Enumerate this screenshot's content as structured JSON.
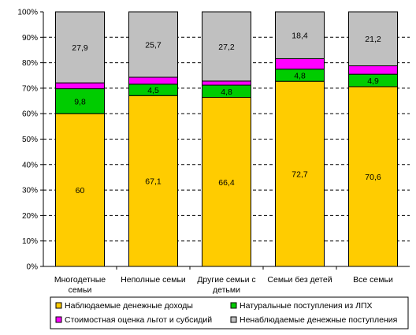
{
  "chart_data": {
    "type": "bar",
    "stacked": "percent",
    "title": "",
    "xlabel": "",
    "ylabel": "",
    "ylim": [
      0,
      100
    ],
    "yticks": [
      "0%",
      "10%",
      "20%",
      "30%",
      "40%",
      "50%",
      "60%",
      "70%",
      "80%",
      "90%",
      "100%"
    ],
    "grid": "horizontal-dashed",
    "legend_position": "bottom",
    "categories": [
      [
        "Многодетные",
        "семьи"
      ],
      [
        "Неполные семьи"
      ],
      [
        "Другие семьи с",
        "детьми"
      ],
      [
        "Семьи без детей"
      ],
      [
        "Все семьи"
      ]
    ],
    "series": [
      {
        "name": "Наблюдаемые денежные доходы",
        "color": "#FFCC00",
        "values": [
          60,
          67.1,
          66.4,
          72.7,
          70.6
        ],
        "labels": [
          "60",
          "67,1",
          "66,4",
          "72,7",
          "70,6"
        ]
      },
      {
        "name": "Натуральные поступления из ЛПХ",
        "color": "#00CC00",
        "values": [
          9.8,
          4.5,
          4.8,
          4.8,
          4.9
        ],
        "labels": [
          "9,8",
          "4,5",
          "4,8",
          "4,8",
          "4,9"
        ]
      },
      {
        "name": "Стоимостная оценка льгот и субсидий",
        "color": "#FF00FF",
        "values": [
          2.3,
          2.7,
          1.6,
          4.1,
          3.3
        ],
        "labels": []
      },
      {
        "name": "Ненаблюдаемые денежные поступления",
        "color": "#C0C0C0",
        "values": [
          27.9,
          25.7,
          27.2,
          18.4,
          21.2
        ],
        "labels": [
          "27,9",
          "25,7",
          "27,2",
          "18,4",
          "21,2"
        ]
      }
    ],
    "legend_order": [
      0,
      1,
      2,
      3
    ]
  }
}
